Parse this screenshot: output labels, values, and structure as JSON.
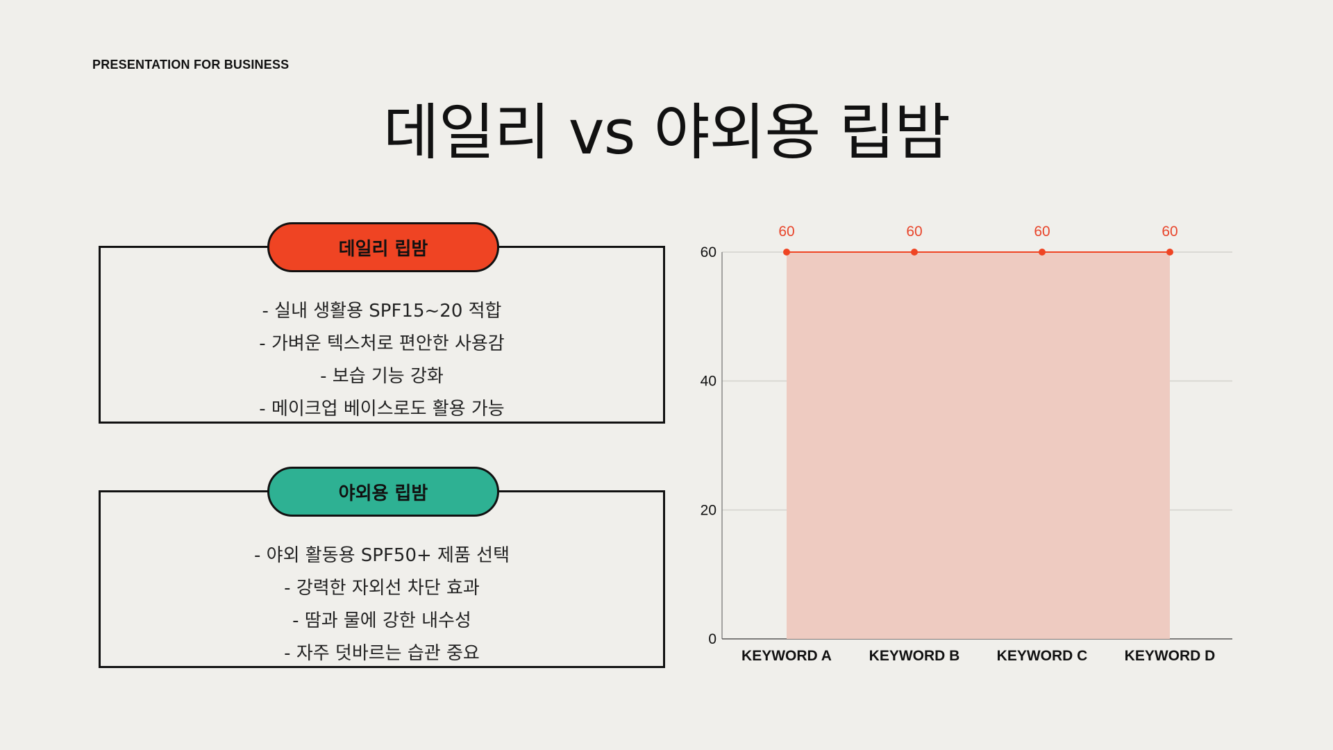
{
  "header": {
    "kicker": "PRESENTATION FOR BUSINESS",
    "title": "데일리 vs 야외용 립밤"
  },
  "cards": [
    {
      "title": "데일리 립밤",
      "color": "#ef4423",
      "bullets": [
        "- 실내 생활용 SPF15~20 적합",
        "- 가벼운 텍스처로 편안한 사용감",
        "- 보습 기능 강화",
        "- 메이크업 베이스로도 활용 가능"
      ]
    },
    {
      "title": "야외용 립밤",
      "color": "#2eb193",
      "bullets": [
        "- 야외 활동용 SPF50+ 제품 선택",
        "- 강력한 자외선 차단 효과",
        "- 땀과 물에 강한 내수성",
        "- 자주 덧바르는 습관 중요"
      ]
    }
  ],
  "chart_data": {
    "type": "area",
    "categories": [
      "KEYWORD A",
      "KEYWORD B",
      "KEYWORD C",
      "KEYWORD D"
    ],
    "series": [
      {
        "values": [
          60,
          60,
          60,
          60
        ]
      }
    ],
    "data_labels": [
      "60",
      "60",
      "60",
      "60"
    ],
    "yticks": [
      0,
      20,
      40,
      60
    ],
    "ylim": [
      0,
      60
    ],
    "grid": true,
    "line_color": "#ef4423",
    "fill_color": "#eecbc1",
    "label_color": "#e8452b"
  }
}
